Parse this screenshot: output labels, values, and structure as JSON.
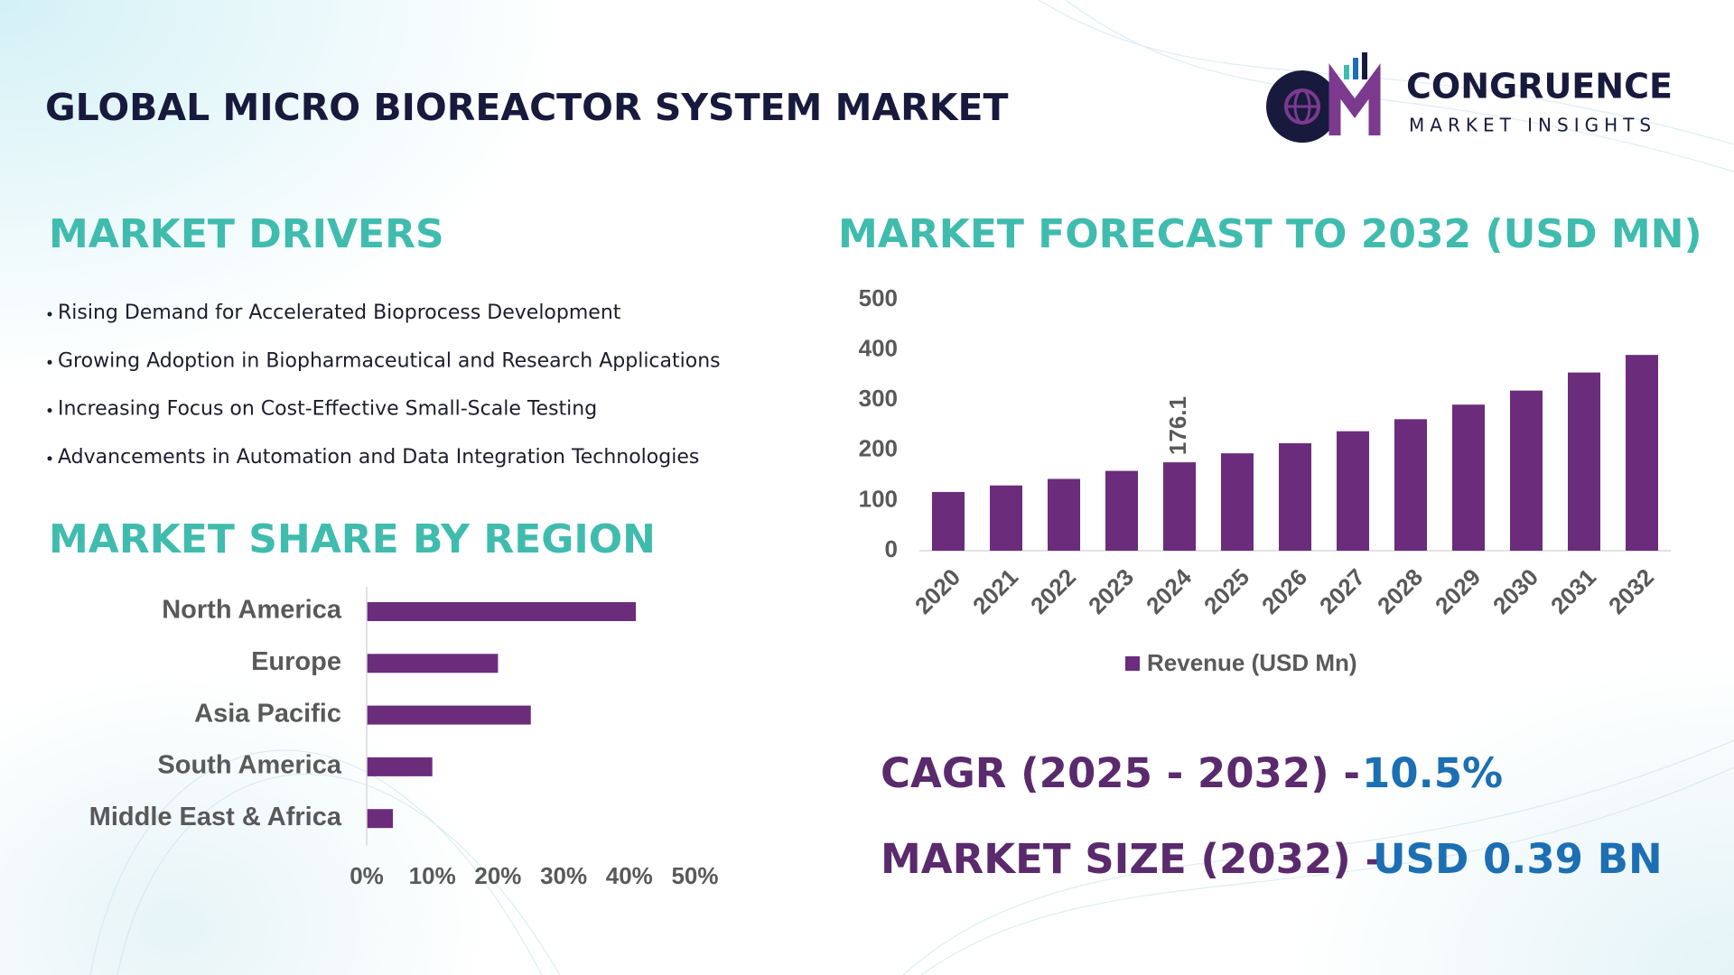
{
  "header": {
    "title": "GLOBAL MICRO BIOREACTOR SYSTEM MARKET"
  },
  "logo": {
    "name": "CONGRUENCE",
    "tagline": "MARKET INSIGHTS"
  },
  "drivers": {
    "title": "MARKET DRIVERS",
    "items": [
      "Rising Demand for Accelerated Bioprocess Development",
      "Growing Adoption in Biopharmaceutical and Research Applications",
      "Increasing Focus on Cost-Effective Small-Scale Testing",
      "Advancements in Automation and Data Integration Technologies"
    ]
  },
  "chart_data": [
    {
      "type": "bar",
      "title": "MARKET FORECAST TO 2032 (USD MN)",
      "categories": [
        "2020",
        "2021",
        "2022",
        "2023",
        "2024",
        "2025",
        "2026",
        "2027",
        "2028",
        "2029",
        "2030",
        "2031",
        "2032"
      ],
      "series": [
        {
          "name": "Revenue (USD Mn)",
          "color": "#6b2d7b",
          "values": [
            117,
            130,
            143,
            159,
            176.1,
            194,
            214,
            238,
            262,
            291,
            319,
            355,
            390
          ]
        }
      ],
      "ylim": [
        0,
        500
      ],
      "yticks": [
        0,
        100,
        200,
        300,
        400,
        500
      ],
      "legend": "bottom"
    },
    {
      "type": "barh",
      "title": "MARKET SHARE BY REGION",
      "categories": [
        "North America",
        "Europe",
        "Asia Pacific",
        "South America",
        "Middle East & Africa"
      ],
      "values": [
        41,
        20,
        25,
        10,
        4
      ],
      "color": "#6b2d7b",
      "xlim": [
        0,
        50
      ],
      "xticks": [
        {
          "value": 0,
          "label": "0%"
        },
        {
          "value": 10,
          "label": "10%"
        },
        {
          "value": 20,
          "label": "20%"
        },
        {
          "value": 30,
          "label": "30%"
        },
        {
          "value": 40,
          "label": "40%"
        },
        {
          "value": 50,
          "label": "50%"
        }
      ]
    }
  ],
  "kpis": [
    {
      "label": "CAGR (2025 - 2032) -",
      "value": "10.5%"
    },
    {
      "label": "MARKET SIZE (2032) –",
      "value": "USD 0.39 BN"
    }
  ]
}
